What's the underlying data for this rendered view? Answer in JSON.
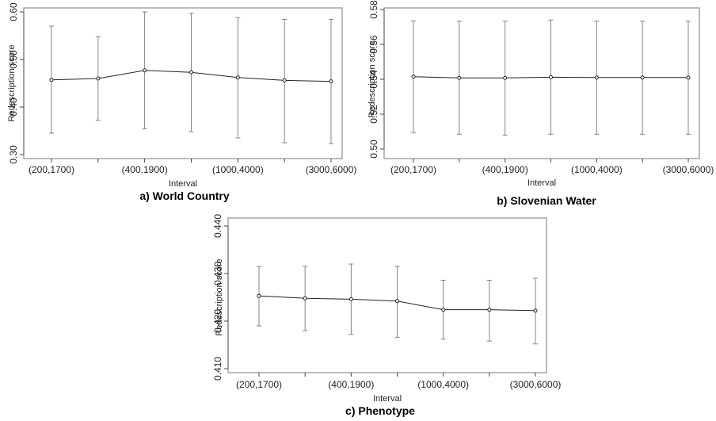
{
  "chart_data": [
    {
      "type": "line",
      "caption": "a) World Country",
      "xlabel": "Interval",
      "ylabel": "Redescription score",
      "ylim": [
        0.3,
        0.6
      ],
      "yticks": [
        "0.30",
        "0.40",
        "0.50",
        "0.60"
      ],
      "yticks_values": [
        0.3,
        0.4,
        0.5,
        0.6
      ],
      "x_tick_labels": [
        "(200,1700)",
        "(400,1900)",
        "(1000,4000)",
        "(3000,6000)"
      ],
      "x_tick_label_indices": [
        0,
        2,
        4,
        6
      ],
      "points": 7,
      "values": [
        0.457,
        0.46,
        0.477,
        0.473,
        0.462,
        0.456,
        0.454
      ],
      "err_low": [
        0.345,
        0.372,
        0.354,
        0.348,
        0.335,
        0.325,
        0.323
      ],
      "err_high": [
        0.57,
        0.548,
        0.6,
        0.597,
        0.588,
        0.584,
        0.584
      ],
      "grid": false
    },
    {
      "type": "line",
      "caption": "b) Slovenian Water",
      "xlabel": "Interval",
      "ylabel": "Redescription score",
      "ylim": [
        0.5,
        0.58
      ],
      "yticks": [
        "0.50",
        "0.52",
        "0.54",
        "0.56",
        "0.58"
      ],
      "yticks_values": [
        0.5,
        0.52,
        0.54,
        0.56,
        0.58
      ],
      "x_tick_labels": [
        "(200,1700)",
        "(400,1900)",
        "(1000,4000)",
        "(3000,6000)"
      ],
      "x_tick_label_indices": [
        0,
        2,
        4,
        6
      ],
      "points": 7,
      "values": [
        0.5415,
        0.5408,
        0.5408,
        0.5412,
        0.541,
        0.541,
        0.541
      ],
      "err_low": [
        0.5095,
        0.5085,
        0.508,
        0.5085,
        0.5085,
        0.5085,
        0.5085
      ],
      "err_high": [
        0.5735,
        0.5733,
        0.5733,
        0.574,
        0.5733,
        0.5733,
        0.5733
      ],
      "grid": false
    },
    {
      "type": "line",
      "caption": "c) Phenotype",
      "xlabel": "Interval",
      "ylabel": "Redescription score",
      "ylim": [
        0.41,
        0.44
      ],
      "yticks": [
        "0.410",
        "0.420",
        "0.430",
        "0.440"
      ],
      "yticks_values": [
        0.41,
        0.42,
        0.43,
        0.44
      ],
      "x_tick_labels": [
        "(200,1700)",
        "(400,1900)",
        "(1000,4000)",
        "(3000,6000)"
      ],
      "x_tick_label_indices": [
        0,
        2,
        4,
        6
      ],
      "points": 7,
      "values": [
        0.4253,
        0.4248,
        0.4246,
        0.4242,
        0.4224,
        0.4224,
        0.4222
      ],
      "err_low": [
        0.419,
        0.418,
        0.4172,
        0.4166,
        0.4162,
        0.4158,
        0.4152
      ],
      "err_high": [
        0.4315,
        0.4315,
        0.432,
        0.4315,
        0.4286,
        0.4286,
        0.429
      ],
      "grid": false
    }
  ]
}
